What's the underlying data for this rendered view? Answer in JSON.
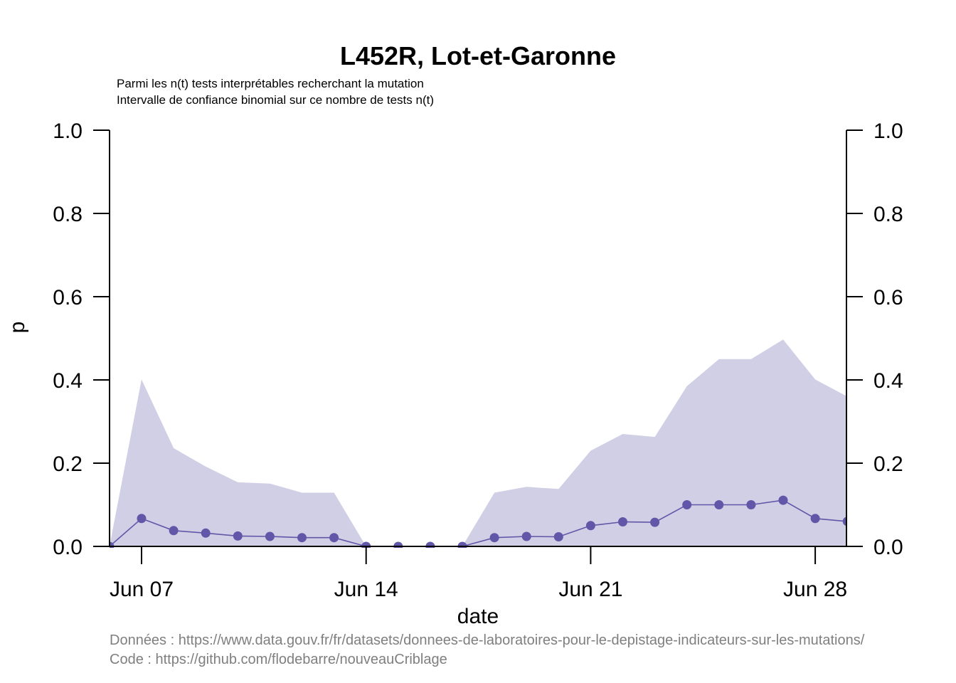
{
  "chart_data": {
    "type": "line",
    "title": "L452R, Lot-et-Garonne",
    "subtitle_lines": [
      "Parmi les n(t) tests interprétables recherchant la mutation",
      "Intervalle de confiance binomial sur ce nombre de tests n(t)"
    ],
    "xlabel": "date",
    "ylabel": "p",
    "x": [
      "2021-06-06",
      "2021-06-07",
      "2021-06-08",
      "2021-06-09",
      "2021-06-10",
      "2021-06-11",
      "2021-06-12",
      "2021-06-13",
      "2021-06-14",
      "2021-06-15",
      "2021-06-16",
      "2021-06-17",
      "2021-06-18",
      "2021-06-19",
      "2021-06-20",
      "2021-06-21",
      "2021-06-22",
      "2021-06-23",
      "2021-06-24",
      "2021-06-25",
      "2021-06-26",
      "2021-06-27",
      "2021-06-28",
      "2021-06-29"
    ],
    "series": [
      {
        "values": [
          0,
          0.067,
          0.038,
          0.032,
          0.025,
          0.024,
          0.021,
          0.021,
          0,
          0,
          0,
          0,
          0.021,
          0.024,
          0.023,
          0.05,
          0.059,
          0.058,
          0.1,
          0.1,
          0.1,
          0.111,
          0.067,
          0.06
        ],
        "ci_lower": [
          0,
          0,
          0,
          0,
          0,
          0,
          0,
          0,
          0,
          0,
          0,
          0,
          0,
          0,
          0,
          0,
          0,
          0,
          0,
          0,
          0,
          0,
          0,
          0
        ],
        "ci_upper": [
          0,
          0.401,
          0.236,
          0.192,
          0.154,
          0.151,
          0.129,
          0.129,
          0,
          0,
          0,
          0,
          0.129,
          0.143,
          0.138,
          0.23,
          0.27,
          0.263,
          0.385,
          0.45,
          0.45,
          0.497,
          0.401,
          0.36
        ]
      }
    ],
    "ylim": [
      0,
      1
    ],
    "yticks": [
      "0.0",
      "0.2",
      "0.4",
      "0.6",
      "0.8",
      "1.0"
    ],
    "xtick_dates": [
      "2021-06-07",
      "2021-06-14",
      "2021-06-21",
      "2021-06-28"
    ],
    "xtick_labels": [
      "Jun 07",
      "Jun 14",
      "Jun 21",
      "Jun 28"
    ],
    "grid": false,
    "colors": {
      "line": "#6057a8",
      "band": "#d0cfe5",
      "axis": "#000000",
      "footer": "#7f7f7f"
    }
  },
  "footer": {
    "data_source": "Données : https://www.data.gouv.fr/fr/datasets/donnees-de-laboratoires-pour-le-depistage-indicateurs-sur-les-mutations/",
    "code_source": "Code : https://github.com/flodebarre/nouveauCriblage"
  }
}
